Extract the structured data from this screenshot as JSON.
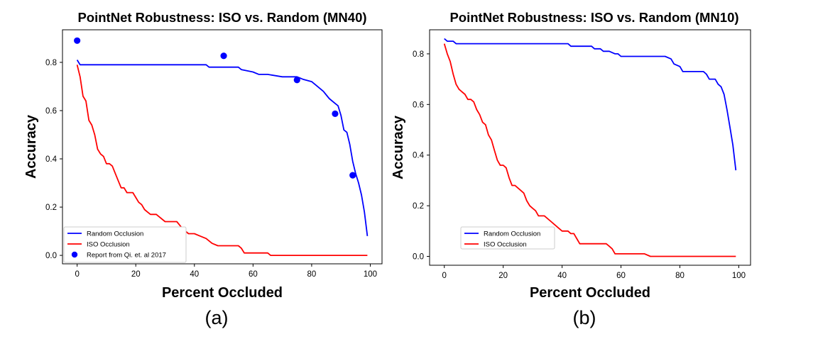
{
  "chart_data": [
    {
      "type": "line",
      "title": "PointNet Robustness: ISO vs. Random (MN40)",
      "xlabel": "Percent Occluded",
      "ylabel": "Accuracy",
      "caption": "(a)",
      "xlim": [
        -5,
        104
      ],
      "ylim": [
        -0.035,
        0.935
      ],
      "xticks": [
        0,
        20,
        40,
        60,
        80,
        100
      ],
      "xtick_labels": [
        "0",
        "20",
        "40",
        "60",
        "80",
        "100"
      ],
      "yticks": [
        0.0,
        0.2,
        0.4,
        0.6,
        0.8
      ],
      "ytick_labels": [
        "0.0",
        "0.2",
        "0.4",
        "0.6",
        "0.8"
      ],
      "grid": false,
      "legend_position": "bottom-left",
      "series": [
        {
          "name": "Random Occlusion",
          "kind": "line",
          "color": "#0000ff",
          "x": [
            0,
            1,
            2,
            5,
            10,
            20,
            30,
            40,
            44,
            45,
            50,
            55,
            56,
            60,
            62,
            65,
            70,
            75,
            77,
            80,
            82,
            84,
            86,
            88,
            89,
            90,
            91,
            92,
            93,
            94,
            95,
            96,
            97,
            98,
            99
          ],
          "y": [
            0.81,
            0.79,
            0.79,
            0.79,
            0.79,
            0.79,
            0.79,
            0.79,
            0.79,
            0.78,
            0.78,
            0.78,
            0.77,
            0.76,
            0.75,
            0.75,
            0.74,
            0.74,
            0.73,
            0.72,
            0.7,
            0.68,
            0.65,
            0.63,
            0.62,
            0.58,
            0.52,
            0.51,
            0.46,
            0.39,
            0.34,
            0.3,
            0.25,
            0.18,
            0.08
          ]
        },
        {
          "name": "ISO Occlusion",
          "kind": "line",
          "color": "#ff0000",
          "x": [
            0,
            1,
            2,
            3,
            4,
            5,
            6,
            7,
            8,
            9,
            10,
            11,
            12,
            13,
            14,
            15,
            16,
            17,
            18,
            19,
            20,
            21,
            22,
            23,
            24,
            25,
            26,
            27,
            28,
            30,
            32,
            34,
            36,
            38,
            40,
            42,
            44,
            46,
            48,
            50,
            52,
            54,
            55,
            56,
            57,
            60,
            62,
            65,
            66,
            67,
            70,
            80,
            90,
            99
          ],
          "y": [
            0.79,
            0.74,
            0.66,
            0.64,
            0.56,
            0.54,
            0.5,
            0.44,
            0.42,
            0.41,
            0.38,
            0.38,
            0.37,
            0.34,
            0.31,
            0.28,
            0.28,
            0.26,
            0.26,
            0.26,
            0.24,
            0.22,
            0.21,
            0.19,
            0.18,
            0.17,
            0.17,
            0.17,
            0.16,
            0.14,
            0.14,
            0.14,
            0.11,
            0.09,
            0.09,
            0.08,
            0.07,
            0.05,
            0.04,
            0.04,
            0.04,
            0.04,
            0.04,
            0.03,
            0.01,
            0.01,
            0.01,
            0.01,
            0.0,
            0.0,
            0.0,
            0.0,
            0.0,
            0.0
          ]
        },
        {
          "name": "Report from Qi. et. al 2017",
          "kind": "scatter",
          "color": "#0000ff",
          "x": [
            0,
            50,
            75,
            88,
            94
          ],
          "y": [
            0.89,
            0.827,
            0.727,
            0.587,
            0.332
          ]
        }
      ]
    },
    {
      "type": "line",
      "title": "PointNet Robustness: ISO vs. Random (MN10)",
      "xlabel": "Percent Occluded",
      "ylabel": "Accuracy",
      "caption": "(b)",
      "xlim": [
        -5,
        104
      ],
      "ylim": [
        -0.035,
        0.895
      ],
      "xticks": [
        0,
        20,
        40,
        60,
        80,
        100
      ],
      "xtick_labels": [
        "0",
        "20",
        "40",
        "60",
        "80",
        "100"
      ],
      "yticks": [
        0.0,
        0.2,
        0.4,
        0.6,
        0.8
      ],
      "ytick_labels": [
        "0.0",
        "0.2",
        "0.4",
        "0.6",
        "0.8"
      ],
      "grid": false,
      "legend_position": "bottom-left",
      "series": [
        {
          "name": "Random Occlusion",
          "kind": "line",
          "color": "#0000ff",
          "x": [
            0,
            1,
            3,
            4,
            5,
            10,
            20,
            30,
            40,
            42,
            43,
            50,
            51,
            53,
            54,
            56,
            58,
            59,
            60,
            70,
            75,
            77,
            78,
            80,
            81,
            88,
            89,
            90,
            91,
            92,
            93,
            94,
            95,
            96,
            97,
            98,
            99
          ],
          "y": [
            0.86,
            0.85,
            0.85,
            0.84,
            0.84,
            0.84,
            0.84,
            0.84,
            0.84,
            0.84,
            0.83,
            0.83,
            0.82,
            0.82,
            0.81,
            0.81,
            0.8,
            0.8,
            0.79,
            0.79,
            0.79,
            0.78,
            0.76,
            0.75,
            0.73,
            0.73,
            0.72,
            0.7,
            0.7,
            0.7,
            0.68,
            0.67,
            0.64,
            0.58,
            0.51,
            0.44,
            0.34
          ]
        },
        {
          "name": "ISO Occlusion",
          "kind": "line",
          "color": "#ff0000",
          "x": [
            0,
            1,
            2,
            3,
            4,
            5,
            6,
            7,
            8,
            9,
            10,
            11,
            12,
            13,
            14,
            15,
            16,
            17,
            18,
            19,
            20,
            21,
            22,
            23,
            24,
            25,
            26,
            27,
            28,
            29,
            30,
            31,
            32,
            34,
            36,
            38,
            40,
            42,
            43,
            44,
            45,
            46,
            48,
            50,
            52,
            54,
            55,
            56,
            57,
            58,
            60,
            65,
            68,
            70,
            80,
            90,
            99
          ],
          "y": [
            0.84,
            0.8,
            0.77,
            0.72,
            0.68,
            0.66,
            0.65,
            0.64,
            0.62,
            0.62,
            0.61,
            0.58,
            0.56,
            0.53,
            0.52,
            0.48,
            0.46,
            0.42,
            0.38,
            0.36,
            0.36,
            0.35,
            0.31,
            0.28,
            0.28,
            0.27,
            0.26,
            0.25,
            0.22,
            0.2,
            0.19,
            0.18,
            0.16,
            0.16,
            0.14,
            0.12,
            0.1,
            0.1,
            0.09,
            0.09,
            0.07,
            0.05,
            0.05,
            0.05,
            0.05,
            0.05,
            0.05,
            0.04,
            0.03,
            0.01,
            0.01,
            0.01,
            0.01,
            0.0,
            0.0,
            0.0,
            0.0
          ]
        }
      ]
    }
  ]
}
